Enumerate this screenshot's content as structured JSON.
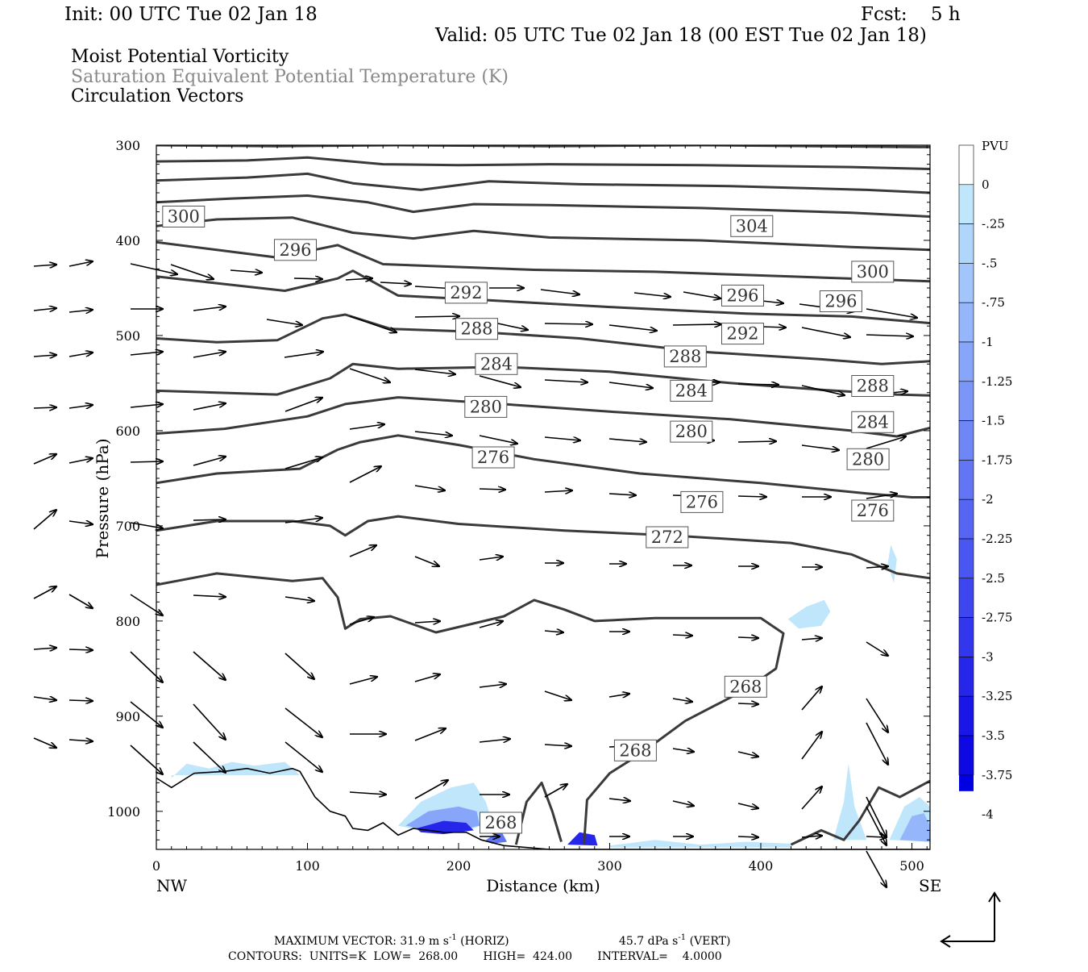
{
  "header": {
    "init": "Init: 00 UTC Tue 02 Jan 18",
    "fcst": "Fcst:    5 h",
    "valid": "Valid: 05 UTC Tue 02 Jan 18 (00 EST Tue 02 Jan 18)",
    "field1": "Moist Potential Vorticity",
    "field2": "Saturation Equivalent Potential Temperature (K)",
    "field3": "Circulation Vectors"
  },
  "colors": {
    "contour": "#3a3a3a",
    "vector": "#000000",
    "terrain": "#000000"
  },
  "chart_data": {
    "type": "cross-section",
    "xlabel": "Distance (km)",
    "ylabel": "Pressure (hPa)",
    "x_left_label": "NW",
    "x_right_label": "SE",
    "xlim": [
      0,
      512
    ],
    "ylim": [
      1040,
      300
    ],
    "xticks": [
      0,
      100,
      200,
      300,
      400,
      500
    ],
    "yticks": [
      300,
      400,
      500,
      600,
      700,
      800,
      900,
      1000
    ],
    "colorbar": {
      "units": "PVU",
      "levels": [
        "0",
        "-.25",
        "-.5",
        "-.75",
        "-1",
        "-1.25",
        "-1.5",
        "-1.75",
        "-2",
        "-2.25",
        "-2.5",
        "-2.75",
        "-3",
        "-3.25",
        "-3.5",
        "-3.75",
        "-4"
      ],
      "colors": [
        "#ffffff",
        "#bfe6fb",
        "#b0d6fb",
        "#a2c6fb",
        "#95b6fa",
        "#88a6f9",
        "#7b96f8",
        "#6e86f6",
        "#6276f5",
        "#5666f3",
        "#4a56f1",
        "#3e46ef",
        "#3236ed",
        "#2626ea",
        "#1a16e8",
        "#0e08e5"
      ]
    },
    "contour_labels": [
      {
        "x": 18,
        "p": 375,
        "value": "300"
      },
      {
        "x": 92,
        "p": 410,
        "value": "296"
      },
      {
        "x": 205,
        "p": 455,
        "value": "292"
      },
      {
        "x": 212,
        "p": 493,
        "value": "288"
      },
      {
        "x": 225,
        "p": 530,
        "value": "284"
      },
      {
        "x": 218,
        "p": 575,
        "value": "280"
      },
      {
        "x": 223,
        "p": 628,
        "value": "276"
      },
      {
        "x": 394,
        "p": 385,
        "value": "304"
      },
      {
        "x": 474,
        "p": 433,
        "value": "300"
      },
      {
        "x": 388,
        "p": 458,
        "value": "296"
      },
      {
        "x": 453,
        "p": 464,
        "value": "296"
      },
      {
        "x": 388,
        "p": 498,
        "value": "292"
      },
      {
        "x": 350,
        "p": 522,
        "value": "288"
      },
      {
        "x": 474,
        "p": 553,
        "value": "288"
      },
      {
        "x": 354,
        "p": 558,
        "value": "284"
      },
      {
        "x": 474,
        "p": 591,
        "value": "284"
      },
      {
        "x": 354,
        "p": 601,
        "value": "280"
      },
      {
        "x": 471,
        "p": 630,
        "value": "280"
      },
      {
        "x": 361,
        "p": 675,
        "value": "276"
      },
      {
        "x": 474,
        "p": 684,
        "value": "276"
      },
      {
        "x": 338,
        "p": 712,
        "value": "272"
      },
      {
        "x": 390,
        "p": 869,
        "value": "268"
      },
      {
        "x": 317,
        "p": 936,
        "value": "268"
      },
      {
        "x": 228,
        "p": 1012,
        "value": "268"
      }
    ],
    "footer": {
      "max_vector": "MAXIMUM VECTOR:  31.9 m s",
      "horiz_unit": "(HORIZ)",
      "vert_value": "45.7 dPa s",
      "vert_unit": "(VERT)",
      "exponent": "-1",
      "contours": "CONTOURS:  UNITS=K  LOW=  268.00       HIGH=  424.00       INTERVAL=    4.0000"
    }
  }
}
